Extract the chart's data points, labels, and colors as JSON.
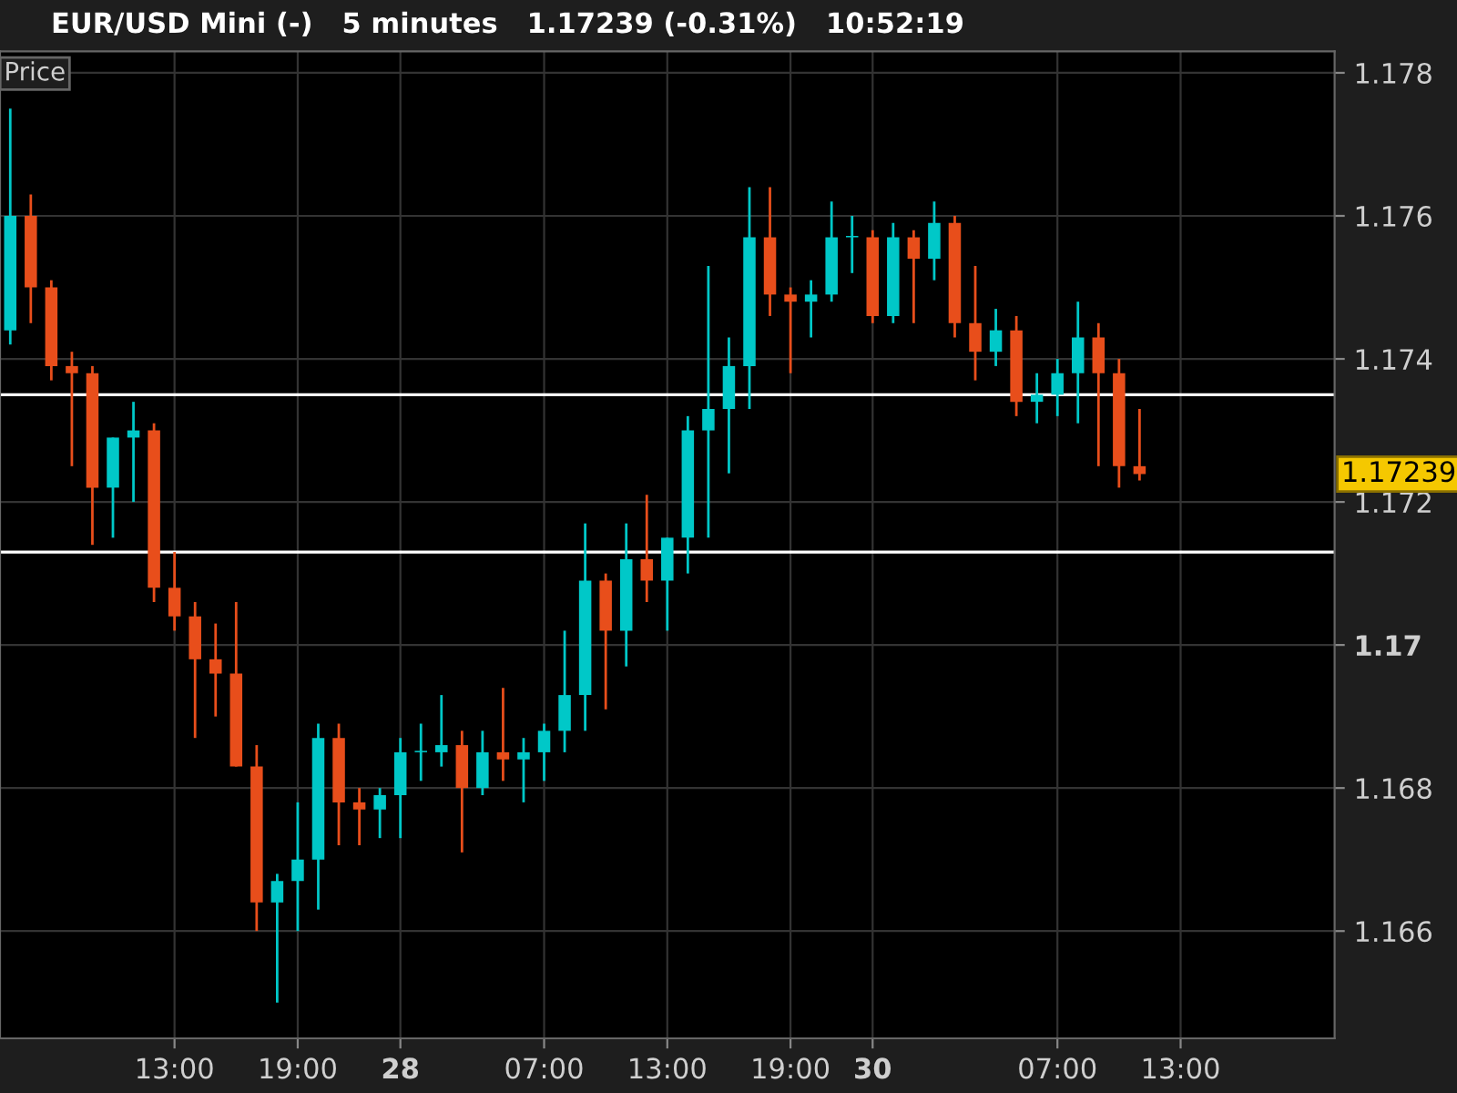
{
  "chart_data": {
    "type": "candlestick",
    "title": "EUR/USD Mini (-)   5 minutes   1.17239 (-0.31%)   10:52:19",
    "ylabel": "Price",
    "categories": [
      null,
      null,
      null,
      null,
      null,
      null,
      null,
      null,
      "13:00",
      null,
      null,
      null,
      null,
      null,
      "19:00",
      null,
      null,
      null,
      null,
      "28",
      null,
      null,
      null,
      null,
      null,
      null,
      "07:00",
      null,
      null,
      null,
      null,
      null,
      "13:00",
      null,
      null,
      null,
      null,
      null,
      "19:00",
      null,
      null,
      null,
      "30",
      null,
      null,
      null,
      null,
      null,
      null,
      null,
      null,
      "07:00",
      null,
      null,
      null,
      null,
      null,
      "13:00",
      null,
      null,
      null,
      null,
      null,
      null,
      null
    ],
    "ohlc": [
      [
        1.1744,
        1.1775,
        1.1742,
        1.176
      ],
      [
        1.176,
        1.1763,
        1.1745,
        1.175
      ],
      [
        1.175,
        1.1751,
        1.1737,
        1.1739
      ],
      [
        1.1739,
        1.1741,
        1.1725,
        1.1738
      ],
      [
        1.1738,
        1.1739,
        1.1714,
        1.1722
      ],
      [
        1.1722,
        1.1729,
        1.1715,
        1.1729
      ],
      [
        1.1729,
        1.1734,
        1.172,
        1.173
      ],
      [
        1.173,
        1.1731,
        1.1706,
        1.1708
      ],
      [
        1.1708,
        1.1713,
        1.1702,
        1.1704
      ],
      [
        1.1704,
        1.1706,
        1.1687,
        1.1698
      ],
      [
        1.1698,
        1.1703,
        1.169,
        1.1696
      ],
      [
        1.1696,
        1.1706,
        1.1683,
        1.1683
      ],
      [
        1.1683,
        1.1686,
        1.166,
        1.1664
      ],
      [
        1.1664,
        1.1668,
        1.165,
        1.1667
      ],
      [
        1.1667,
        1.1678,
        1.166,
        1.167
      ],
      [
        1.167,
        1.1689,
        1.1663,
        1.1687
      ],
      [
        1.1687,
        1.1689,
        1.1672,
        1.1678
      ],
      [
        1.1678,
        1.168,
        1.1672,
        1.1677
      ],
      [
        1.1677,
        1.168,
        1.1673,
        1.1679
      ],
      [
        1.1679,
        1.1687,
        1.1673,
        1.1685
      ],
      [
        1.1685,
        1.1689,
        1.1681,
        1.1685
      ],
      [
        1.1685,
        1.1693,
        1.1683,
        1.1686
      ],
      [
        1.1686,
        1.1688,
        1.1671,
        1.168
      ],
      [
        1.168,
        1.1688,
        1.1679,
        1.1685
      ],
      [
        1.1685,
        1.1694,
        1.1681,
        1.1684
      ],
      [
        1.1684,
        1.1687,
        1.1678,
        1.1685
      ],
      [
        1.1685,
        1.1689,
        1.1681,
        1.1688
      ],
      [
        1.1688,
        1.1702,
        1.1685,
        1.1693
      ],
      [
        1.1693,
        1.1717,
        1.1688,
        1.1709
      ],
      [
        1.1709,
        1.171,
        1.1691,
        1.1702
      ],
      [
        1.1702,
        1.1717,
        1.1697,
        1.1712
      ],
      [
        1.1712,
        1.1721,
        1.1706,
        1.1709
      ],
      [
        1.1709,
        1.1715,
        1.1702,
        1.1715
      ],
      [
        1.1715,
        1.1732,
        1.171,
        1.173
      ],
      [
        1.173,
        1.1753,
        1.1715,
        1.1733
      ],
      [
        1.1733,
        1.1743,
        1.1724,
        1.1739
      ],
      [
        1.1739,
        1.1764,
        1.1733,
        1.1757
      ],
      [
        1.1757,
        1.1764,
        1.1746,
        1.1749
      ],
      [
        1.1749,
        1.175,
        1.1738,
        1.1748
      ],
      [
        1.1748,
        1.1751,
        1.1743,
        1.1749
      ],
      [
        1.1749,
        1.1762,
        1.1748,
        1.1757
      ],
      [
        1.1757,
        1.176,
        1.1752,
        1.1757
      ],
      [
        1.1757,
        1.1758,
        1.1745,
        1.1746
      ],
      [
        1.1746,
        1.1759,
        1.1745,
        1.1757
      ],
      [
        1.1757,
        1.1758,
        1.1745,
        1.1754
      ],
      [
        1.1754,
        1.1762,
        1.1751,
        1.1759
      ],
      [
        1.1759,
        1.176,
        1.1743,
        1.1745
      ],
      [
        1.1745,
        1.1753,
        1.1737,
        1.1741
      ],
      [
        1.1741,
        1.1747,
        1.1739,
        1.1744
      ],
      [
        1.1744,
        1.1746,
        1.1732,
        1.1734
      ],
      [
        1.1734,
        1.1738,
        1.1731,
        1.1735
      ],
      [
        1.1735,
        1.174,
        1.1732,
        1.1738
      ],
      [
        1.1738,
        1.1748,
        1.1731,
        1.1743
      ],
      [
        1.1743,
        1.1745,
        1.1725,
        1.1738
      ],
      [
        1.1738,
        1.174,
        1.1722,
        1.1725
      ],
      [
        1.1725,
        1.1733,
        1.1723,
        1.17239
      ],
      null,
      null,
      null,
      null,
      null,
      null,
      null,
      null,
      null
    ],
    "colors": [
      "#00c8c8",
      "#e84e1b",
      "#e84e1b",
      "#e84e1b",
      "#e84e1b",
      "#00c8c8",
      "#00c8c8",
      "#e84e1b",
      "#e84e1b",
      "#e84e1b",
      "#e84e1b",
      "#e84e1b",
      "#e84e1b",
      "#00c8c8",
      "#00c8c8",
      "#00c8c8",
      "#e84e1b",
      "#e84e1b",
      "#00c8c8",
      "#00c8c8",
      "#00c8c8",
      "#00c8c8",
      "#e84e1b",
      "#00c8c8",
      "#e84e1b",
      "#00c8c8",
      "#00c8c8",
      "#00c8c8",
      "#00c8c8",
      "#e84e1b",
      "#00c8c8",
      "#e84e1b",
      "#00c8c8",
      "#00c8c8",
      "#00c8c8",
      "#00c8c8",
      "#00c8c8",
      "#e84e1b",
      "#e84e1b",
      "#00c8c8",
      "#00c8c8",
      "#00c8c8",
      "#e84e1b",
      "#00c8c8",
      "#e84e1b",
      "#00c8c8",
      "#e84e1b",
      "#e84e1b",
      "#00c8c8",
      "#e84e1b",
      "#00c8c8",
      "#00c8c8",
      "#00c8c8",
      "#e84e1b",
      "#e84e1b",
      "#e84e1b",
      null,
      null,
      null,
      null,
      null,
      null,
      null,
      null,
      null
    ],
    "ylim": [
      1.1645,
      1.1783
    ],
    "yticks": [
      1.166,
      1.168,
      1.17,
      1.172,
      1.174,
      1.176,
      1.178
    ],
    "ref_lines": [
      {
        "axis": "y",
        "value": 1.1735,
        "color": "#ffffff"
      },
      {
        "axis": "y",
        "value": 1.1713,
        "color": "#ffffff"
      }
    ],
    "annotations": [
      "1.17239"
    ],
    "grid": true
  }
}
